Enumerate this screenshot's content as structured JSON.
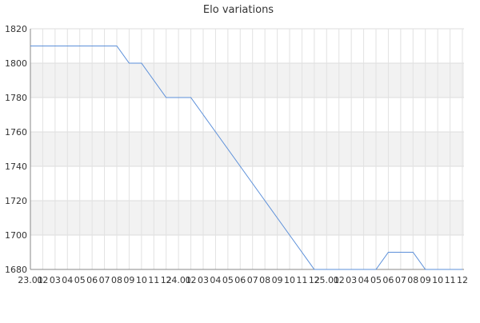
{
  "chart_data": {
    "type": "line",
    "title": "Elo variations",
    "categories": [
      "23.01",
      "02",
      "03",
      "04",
      "05",
      "06",
      "07",
      "08",
      "09",
      "10",
      "11",
      "12",
      "24.01",
      "02",
      "03",
      "04",
      "05",
      "06",
      "07",
      "08",
      "09",
      "10",
      "11",
      "12",
      "25.01",
      "02",
      "03",
      "04",
      "05",
      "06",
      "07",
      "08",
      "09",
      "10",
      "11",
      "12"
    ],
    "values": [
      1810,
      1810,
      1810,
      1810,
      1810,
      1810,
      1810,
      1810,
      1800,
      1800,
      1790,
      1780,
      1780,
      1780,
      1770,
      1760,
      1750,
      1740,
      1730,
      1720,
      1710,
      1700,
      1690,
      1680,
      1680,
      1680,
      1680,
      1680,
      1680,
      1690,
      1690,
      1690,
      1680,
      1680,
      1680,
      1680
    ],
    "color": "#5b8fd9",
    "ylim": [
      1680,
      1820
    ],
    "yticks": [
      1680,
      1700,
      1720,
      1740,
      1760,
      1780,
      1800,
      1820
    ],
    "grid": true
  }
}
